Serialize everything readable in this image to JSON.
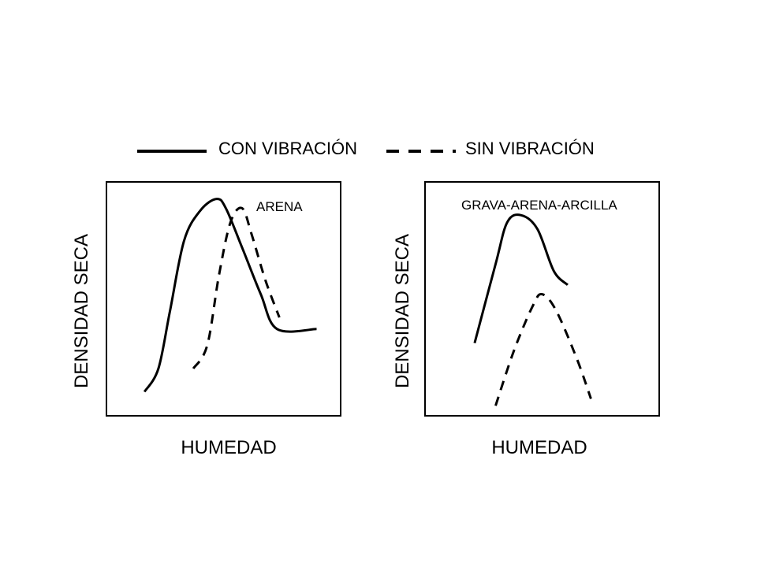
{
  "legend": {
    "solid_label": "CON VIBRACIÓN",
    "dashed_label": "SIN VIBRACIÓN"
  },
  "chart_data": [
    {
      "type": "line",
      "annotation": "ARENA",
      "xlabel": "HUMEDAD",
      "ylabel": "DENSIDAD SECA",
      "xlim": [
        0,
        100
      ],
      "ylim": [
        0,
        100
      ],
      "series": [
        {
          "name": "CON VIBRACIÓN",
          "style": "solid",
          "points": [
            [
              16,
              10
            ],
            [
              22,
              20
            ],
            [
              27,
              45
            ],
            [
              33,
              75
            ],
            [
              40,
              88
            ],
            [
              47,
              93
            ],
            [
              51,
              89
            ],
            [
              58,
              72
            ],
            [
              66,
              52
            ],
            [
              73,
              37
            ],
            [
              90,
              37
            ]
          ]
        },
        {
          "name": "SIN VIBRACIÓN",
          "style": "dashed",
          "points": [
            [
              37,
              20
            ],
            [
              43,
              30
            ],
            [
              48,
              60
            ],
            [
              53,
              83
            ],
            [
              58,
              89
            ],
            [
              62,
              78
            ],
            [
              68,
              58
            ],
            [
              74,
              42
            ]
          ]
        }
      ]
    },
    {
      "type": "line",
      "annotation": "GRAVA-ARENA-ARCILLA",
      "xlabel": "HUMEDAD",
      "ylabel": "DENSIDAD SECA",
      "xlim": [
        0,
        100
      ],
      "ylim": [
        0,
        100
      ],
      "series": [
        {
          "name": "CON VIBRACIÓN",
          "style": "solid",
          "points": [
            [
              21,
              31
            ],
            [
              30,
              65
            ],
            [
              35,
              83
            ],
            [
              41,
              86
            ],
            [
              48,
              80
            ],
            [
              55,
              62
            ],
            [
              61,
              56
            ]
          ]
        },
        {
          "name": "SIN VIBRACIÓN",
          "style": "dashed",
          "points": [
            [
              30,
              4
            ],
            [
              38,
              28
            ],
            [
              46,
              47
            ],
            [
              50,
              52
            ],
            [
              56,
              45
            ],
            [
              65,
              24
            ],
            [
              71,
              7
            ]
          ]
        }
      ]
    }
  ],
  "colors": {
    "line": "#000000",
    "background": "#ffffff"
  }
}
